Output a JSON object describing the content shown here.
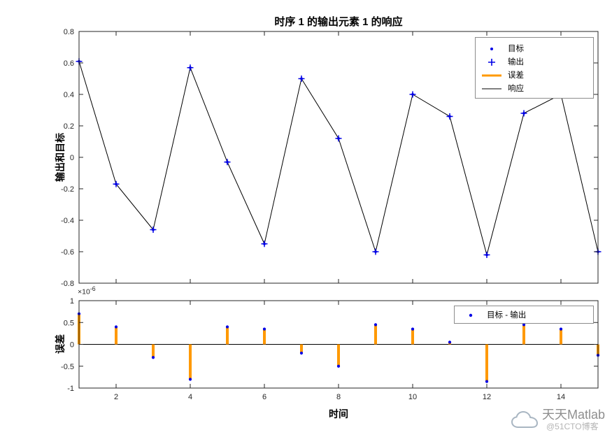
{
  "figure": {
    "bg": "#ffffff",
    "axis_color": "#262626",
    "watermark": {
      "brand": "天天Matlab",
      "handle": "@51CTO博客"
    }
  },
  "chart_data": [
    {
      "type": "line",
      "title": "时序 1 的输出元素 1 的响应",
      "ylabel": "输出和目标",
      "xlim": [
        1,
        15
      ],
      "ylim": [
        -0.8,
        0.8
      ],
      "yticks": [
        0.8,
        0.6,
        0.4,
        0.2,
        0,
        -0.2,
        -0.4,
        -0.6,
        -0.8
      ],
      "xticks": [
        2,
        4,
        6,
        8,
        10,
        12,
        14
      ],
      "show_xticklabels": false,
      "grid": false,
      "x": [
        1,
        2,
        3,
        4,
        5,
        6,
        7,
        8,
        9,
        10,
        11,
        12,
        13,
        14,
        15
      ],
      "series": [
        {
          "name": "目标",
          "kind": "marker-dot",
          "color": "#0000E6",
          "values": [
            0.61,
            -0.17,
            -0.46,
            0.57,
            -0.03,
            -0.55,
            0.5,
            0.12,
            -0.6,
            0.4,
            0.26,
            -0.62,
            0.28,
            0.4,
            -0.6
          ]
        },
        {
          "name": "输出",
          "kind": "marker-plus",
          "color": "#0000E6",
          "values": [
            0.61,
            -0.17,
            -0.46,
            0.57,
            -0.03,
            -0.55,
            0.5,
            0.12,
            -0.6,
            0.4,
            0.26,
            -0.62,
            0.28,
            0.4,
            -0.6
          ]
        },
        {
          "name": "误差",
          "kind": "line",
          "color": "#FF9900",
          "line_width": 3,
          "values": null
        },
        {
          "name": "响应",
          "kind": "line",
          "color": "#000000",
          "line_width": 1,
          "values": [
            0.61,
            -0.17,
            -0.46,
            0.57,
            -0.03,
            -0.55,
            0.5,
            0.12,
            -0.6,
            0.4,
            0.26,
            -0.62,
            0.28,
            0.4,
            -0.6
          ]
        }
      ],
      "legend": {
        "position": "top-right",
        "entries": [
          "目标",
          "输出",
          "误差",
          "响应"
        ]
      }
    },
    {
      "type": "stem",
      "title": "",
      "ylabel": "误差",
      "xlabel": "时间",
      "exponent": {
        "prefix": "×10",
        "power": "-6"
      },
      "xlim": [
        1,
        15
      ],
      "ylim": [
        -1,
        1
      ],
      "yticks": [
        1,
        0.5,
        0,
        -0.5,
        -1
      ],
      "xticks": [
        2,
        4,
        6,
        8,
        10,
        12,
        14
      ],
      "show_xticklabels": true,
      "grid": false,
      "x": [
        1,
        2,
        3,
        4,
        5,
        6,
        7,
        8,
        9,
        10,
        11,
        12,
        13,
        14,
        15
      ],
      "series": [
        {
          "name": "目标 - 输出",
          "kind": "stem",
          "stem_color": "#FF9900",
          "marker_color": "#0000E6",
          "values": [
            0.7,
            0.4,
            -0.3,
            -0.8,
            0.4,
            0.35,
            -0.2,
            -0.5,
            0.45,
            0.35,
            0.05,
            -0.85,
            0.45,
            0.35,
            -0.25
          ]
        }
      ],
      "legend": {
        "position": "top-right",
        "entries": [
          "目标 - 输出"
        ]
      }
    }
  ]
}
